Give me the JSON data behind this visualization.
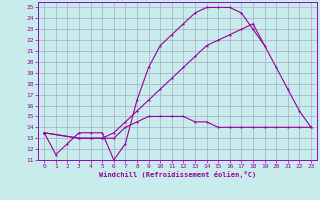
{
  "xlabel": "Windchill (Refroidissement éolien,°C)",
  "bg_color": "#c8ecec",
  "grid_color": "#aaaacc",
  "line_color": "#990099",
  "spine_color": "#9900cc",
  "xlim": [
    -0.5,
    23.5
  ],
  "ylim": [
    11,
    25.5
  ],
  "xticks": [
    0,
    1,
    2,
    3,
    4,
    5,
    6,
    7,
    8,
    9,
    10,
    11,
    12,
    13,
    14,
    15,
    16,
    17,
    18,
    19,
    20,
    21,
    22,
    23
  ],
  "yticks": [
    11,
    12,
    13,
    14,
    15,
    16,
    17,
    18,
    19,
    20,
    21,
    22,
    23,
    24,
    25
  ],
  "line1_x": [
    0,
    1,
    2,
    3,
    4,
    5,
    6,
    7,
    8,
    9,
    10,
    11,
    12,
    13,
    14,
    15,
    16,
    17,
    18,
    19
  ],
  "line1_y": [
    13.5,
    11.5,
    12.5,
    13.5,
    13.5,
    13.5,
    11.0,
    12.5,
    16.5,
    19.5,
    21.5,
    22.5,
    23.5,
    24.5,
    25.0,
    25.0,
    25.0,
    24.5,
    23.0,
    21.5
  ],
  "line2_x": [
    0,
    3,
    4,
    5,
    6,
    7,
    8,
    9,
    10,
    11,
    12,
    13,
    14,
    15,
    16,
    17,
    18,
    19,
    20,
    21,
    22,
    23
  ],
  "line2_y": [
    13.5,
    13.0,
    13.0,
    13.0,
    13.0,
    14.0,
    14.5,
    15.0,
    15.0,
    15.0,
    15.0,
    14.5,
    14.5,
    14.0,
    14.0,
    14.0,
    14.0,
    14.0,
    14.0,
    14.0,
    14.0,
    14.0
  ],
  "line3_x": [
    0,
    3,
    4,
    5,
    6,
    7,
    8,
    9,
    10,
    11,
    12,
    13,
    14,
    15,
    16,
    17,
    18,
    20,
    21,
    22,
    23
  ],
  "line3_y": [
    13.5,
    13.0,
    13.0,
    13.0,
    13.5,
    14.5,
    15.5,
    16.5,
    17.5,
    18.5,
    19.5,
    20.5,
    21.5,
    22.0,
    22.5,
    23.0,
    23.5,
    19.5,
    17.5,
    15.5,
    14.0
  ]
}
